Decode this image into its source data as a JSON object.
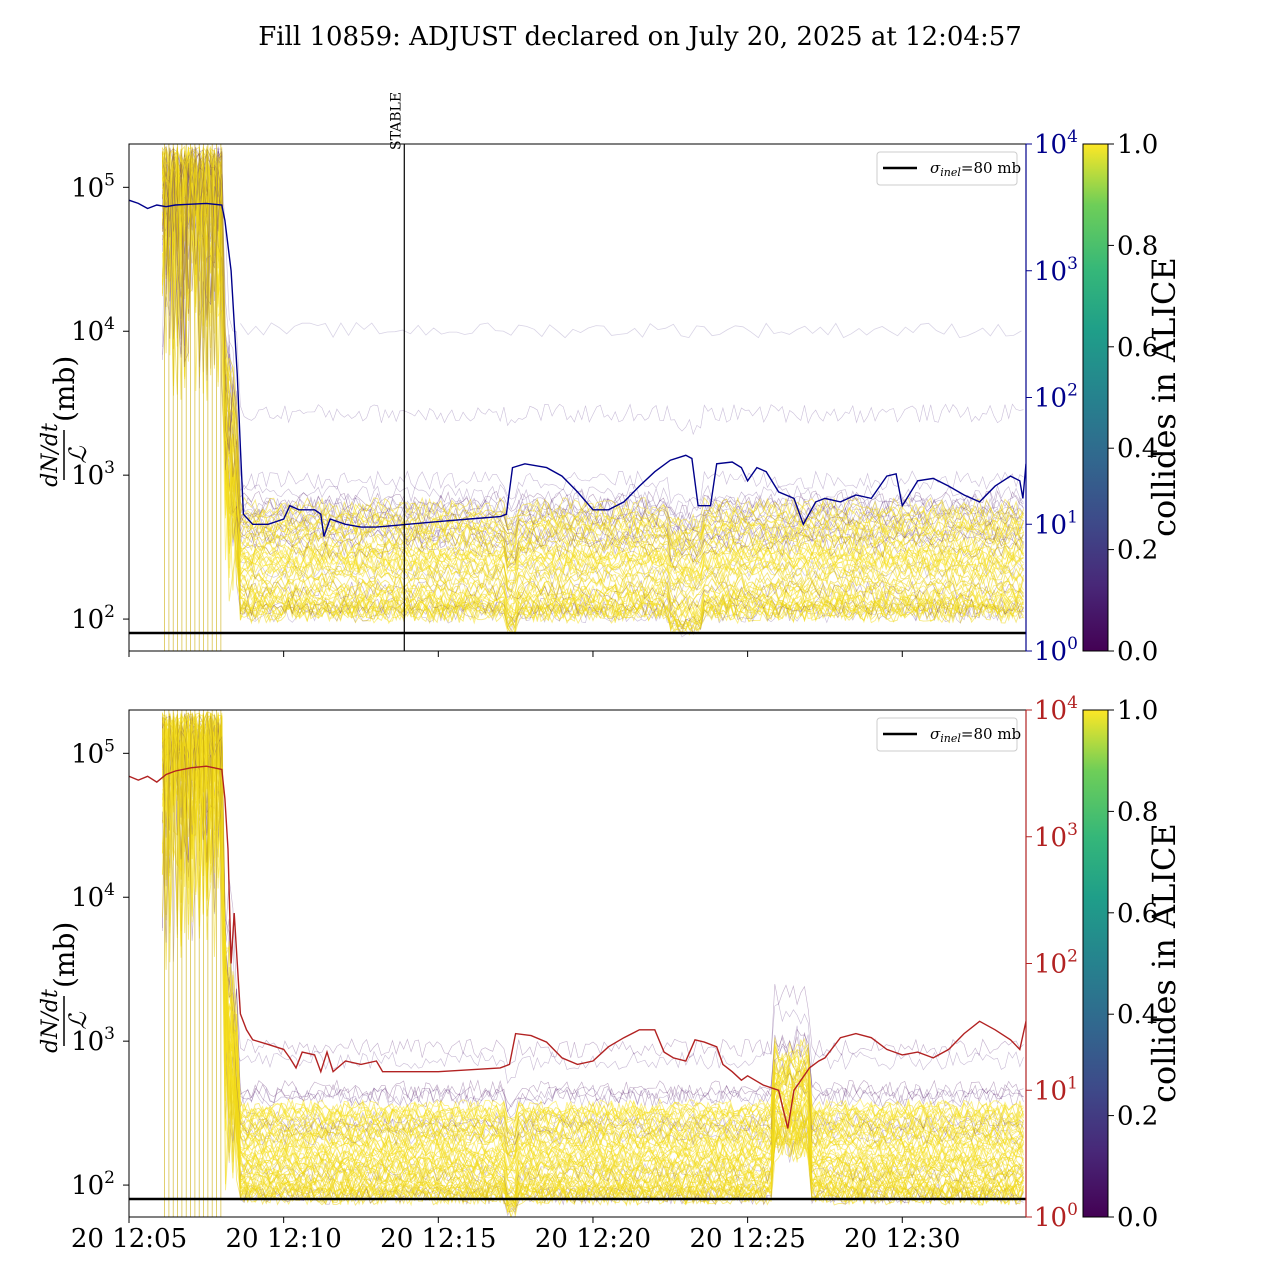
{
  "figure_title": "Fill 10859: ADJUST declared on July 20, 2025 at 12:04:57",
  "chart_data": [
    {
      "type": "line",
      "panel": "top",
      "xlabel": "",
      "ylabel_lines": [
        "dN/dt",
        "ℒ",
        "(mb)"
      ],
      "yscale": "log",
      "ylim": [
        60,
        200000
      ],
      "y_ticks": [
        {
          "value": 100,
          "base": "10",
          "exp": "2"
        },
        {
          "value": 1000,
          "base": "10",
          "exp": "3"
        },
        {
          "value": 10000,
          "base": "10",
          "exp": "4"
        },
        {
          "value": 100000,
          "base": "10",
          "exp": "5"
        }
      ],
      "y2scale": "log",
      "y2lim": [
        1,
        10000
      ],
      "y2_color": "#00008b",
      "y2_ticks": [
        {
          "value": 1,
          "base": "10",
          "exp": "0"
        },
        {
          "value": 10,
          "base": "10",
          "exp": "1"
        },
        {
          "value": 100,
          "base": "10",
          "exp": "2"
        },
        {
          "value": 1000,
          "base": "10",
          "exp": "3"
        },
        {
          "value": 10000,
          "base": "10",
          "exp": "4"
        }
      ],
      "xlim_minutes_after_12_05": [
        0,
        29
      ],
      "vertical_marker": {
        "label": "STABLE",
        "minutes_after_12_05": 8.9
      },
      "reference_line": {
        "value": 80,
        "legend": {
          "sigma": "σ",
          "subscript": "inel",
          "text": "=80 mb"
        }
      },
      "legend_position": "top-right",
      "colorbar": {
        "label": "collides in ALICE",
        "range": [
          0,
          1
        ],
        "ticks": [
          "0.0",
          "0.2",
          "0.4",
          "0.6",
          "0.8",
          "1.0"
        ],
        "colormap": "viridis"
      },
      "right_series": {
        "name": "",
        "color": "#00008b",
        "points": [
          [
            0,
            3600
          ],
          [
            0.3,
            3400
          ],
          [
            0.6,
            3100
          ],
          [
            0.9,
            3300
          ],
          [
            1.2,
            3200
          ],
          [
            1.5,
            3300
          ],
          [
            2,
            3350
          ],
          [
            2.5,
            3400
          ],
          [
            3,
            3300
          ],
          [
            3.1,
            2500
          ],
          [
            3.3,
            1000
          ],
          [
            3.5,
            150
          ],
          [
            3.6,
            40
          ],
          [
            3.7,
            12
          ],
          [
            4,
            10
          ],
          [
            4.5,
            10
          ],
          [
            5,
            11
          ],
          [
            5.2,
            14
          ],
          [
            5.5,
            13
          ],
          [
            6,
            13
          ],
          [
            6.2,
            12
          ],
          [
            6.3,
            8
          ],
          [
            6.5,
            11
          ],
          [
            7,
            10
          ],
          [
            7.5,
            9.5
          ],
          [
            8,
            9.5
          ],
          [
            9,
            10
          ],
          [
            10,
            10.5
          ],
          [
            11,
            11
          ],
          [
            12,
            11.5
          ],
          [
            12.2,
            12
          ],
          [
            12.4,
            28
          ],
          [
            12.8,
            30
          ],
          [
            13.5,
            28
          ],
          [
            14,
            24
          ],
          [
            14.5,
            18
          ],
          [
            15,
            13
          ],
          [
            15.5,
            13
          ],
          [
            16,
            15
          ],
          [
            16.5,
            20
          ],
          [
            17,
            26
          ],
          [
            17.5,
            32
          ],
          [
            18,
            35
          ],
          [
            18.2,
            33
          ],
          [
            18.4,
            14
          ],
          [
            18.8,
            14
          ],
          [
            19,
            30
          ],
          [
            19.5,
            31
          ],
          [
            19.8,
            28
          ],
          [
            20,
            22
          ],
          [
            20.3,
            28
          ],
          [
            20.6,
            26
          ],
          [
            21,
            18
          ],
          [
            21.5,
            16
          ],
          [
            21.8,
            10
          ],
          [
            22.2,
            15
          ],
          [
            22.5,
            16
          ],
          [
            23,
            15
          ],
          [
            23.5,
            17
          ],
          [
            24,
            16
          ],
          [
            24.5,
            24
          ],
          [
            24.8,
            25
          ],
          [
            25,
            14
          ],
          [
            25.5,
            22
          ],
          [
            26,
            23
          ],
          [
            26.5,
            20
          ],
          [
            27,
            17
          ],
          [
            27.5,
            15
          ],
          [
            28,
            20
          ],
          [
            28.5,
            24
          ],
          [
            28.8,
            22
          ],
          [
            28.9,
            16
          ],
          [
            29,
            30
          ]
        ]
      }
    },
    {
      "type": "line",
      "panel": "bottom",
      "xlabel": "",
      "ylabel_lines": [
        "dN/dt",
        "ℒ",
        "(mb)"
      ],
      "yscale": "log",
      "ylim": [
        60,
        200000
      ],
      "y_ticks": [
        {
          "value": 100,
          "base": "10",
          "exp": "2"
        },
        {
          "value": 1000,
          "base": "10",
          "exp": "3"
        },
        {
          "value": 10000,
          "base": "10",
          "exp": "4"
        },
        {
          "value": 100000,
          "base": "10",
          "exp": "5"
        }
      ],
      "y2scale": "log",
      "y2lim": [
        1,
        10000
      ],
      "y2_color": "#b22222",
      "y2_ticks": [
        {
          "value": 1,
          "base": "10",
          "exp": "0"
        },
        {
          "value": 10,
          "base": "10",
          "exp": "1"
        },
        {
          "value": 100,
          "base": "10",
          "exp": "2"
        },
        {
          "value": 1000,
          "base": "10",
          "exp": "3"
        },
        {
          "value": 10000,
          "base": "10",
          "exp": "4"
        }
      ],
      "x_ticks": [
        {
          "label": "20 12:05",
          "minutes_after_12_05": 0
        },
        {
          "label": "20 12:10",
          "minutes_after_12_05": 5
        },
        {
          "label": "20 12:15",
          "minutes_after_12_05": 10
        },
        {
          "label": "20 12:20",
          "minutes_after_12_05": 15
        },
        {
          "label": "20 12:25",
          "minutes_after_12_05": 20
        },
        {
          "label": "20 12:30",
          "minutes_after_12_05": 25
        }
      ],
      "xlim_minutes_after_12_05": [
        0,
        29
      ],
      "reference_line": {
        "value": 80,
        "legend": {
          "sigma": "σ",
          "subscript": "inel",
          "text": "=80 mb"
        }
      },
      "legend_position": "top-right",
      "colorbar": {
        "label": "collides in ALICE",
        "range": [
          0,
          1
        ],
        "ticks": [
          "0.0",
          "0.2",
          "0.4",
          "0.6",
          "0.8",
          "1.0"
        ],
        "colormap": "viridis"
      },
      "right_series": {
        "name": "",
        "color": "#b22222",
        "points": [
          [
            0,
            3000
          ],
          [
            0.3,
            2800
          ],
          [
            0.6,
            3000
          ],
          [
            0.9,
            2700
          ],
          [
            1.2,
            3100
          ],
          [
            1.5,
            3300
          ],
          [
            2,
            3500
          ],
          [
            2.5,
            3600
          ],
          [
            3,
            3400
          ],
          [
            3.1,
            2000
          ],
          [
            3.2,
            800
          ],
          [
            3.3,
            100
          ],
          [
            3.4,
            250
          ],
          [
            3.5,
            100
          ],
          [
            3.6,
            40
          ],
          [
            3.8,
            30
          ],
          [
            4,
            25
          ],
          [
            4.5,
            23
          ],
          [
            5,
            21
          ],
          [
            5.2,
            18
          ],
          [
            5.4,
            15
          ],
          [
            5.6,
            20
          ],
          [
            6,
            19
          ],
          [
            6.2,
            14
          ],
          [
            6.4,
            20
          ],
          [
            6.6,
            14
          ],
          [
            7,
            17
          ],
          [
            7.5,
            16
          ],
          [
            8,
            17
          ],
          [
            8.2,
            14
          ],
          [
            9,
            14
          ],
          [
            10,
            14
          ],
          [
            11,
            14.5
          ],
          [
            12,
            15
          ],
          [
            12.3,
            16
          ],
          [
            12.5,
            28
          ],
          [
            13,
            27
          ],
          [
            13.5,
            24
          ],
          [
            14,
            18
          ],
          [
            14.5,
            16
          ],
          [
            15,
            17
          ],
          [
            15.5,
            22
          ],
          [
            16,
            26
          ],
          [
            16.5,
            30
          ],
          [
            17,
            30
          ],
          [
            17.3,
            20
          ],
          [
            17.6,
            18
          ],
          [
            18,
            17
          ],
          [
            18.3,
            25
          ],
          [
            18.6,
            24
          ],
          [
            19,
            22
          ],
          [
            19.2,
            16
          ],
          [
            19.5,
            14
          ],
          [
            19.8,
            12
          ],
          [
            20,
            13
          ],
          [
            20.5,
            11
          ],
          [
            21,
            10
          ],
          [
            21.3,
            5
          ],
          [
            21.5,
            10
          ],
          [
            22,
            15
          ],
          [
            22.3,
            17
          ],
          [
            22.5,
            18
          ],
          [
            23,
            26
          ],
          [
            23.5,
            28
          ],
          [
            24,
            26
          ],
          [
            24.5,
            21
          ],
          [
            25,
            19
          ],
          [
            25.5,
            20
          ],
          [
            26,
            18
          ],
          [
            26.5,
            21
          ],
          [
            27,
            28
          ],
          [
            27.5,
            35
          ],
          [
            28,
            30
          ],
          [
            28.5,
            25
          ],
          [
            28.8,
            21
          ],
          [
            29,
            35
          ]
        ]
      }
    }
  ],
  "heatmap_series_summary": "",
  "colors": {
    "yellow": "#fde725",
    "purple": "#440154",
    "black": "#000000"
  }
}
